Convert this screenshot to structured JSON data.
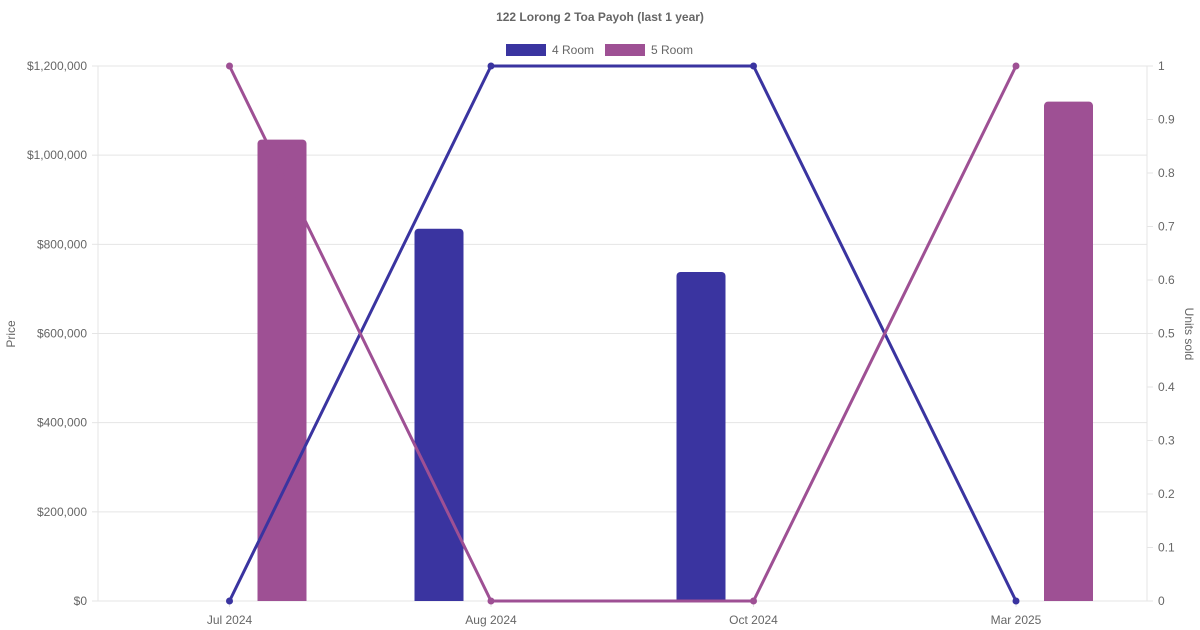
{
  "chart_data": {
    "type": "bar",
    "title": "122 Lorong 2 Toa Payoh (last 1 year)",
    "categories": [
      "Jul 2024",
      "Aug 2024",
      "Oct 2024",
      "Mar 2025"
    ],
    "y_left": {
      "label": "Price",
      "ylim": [
        0,
        1200000
      ],
      "ticks": [
        "$0",
        "$200,000",
        "$400,000",
        "$600,000",
        "$800,000",
        "$1,000,000",
        "$1,200,000"
      ]
    },
    "y_right": {
      "label": "Units sold",
      "ylim": [
        0,
        1
      ],
      "ticks": [
        "0",
        "0.1",
        "0.2",
        "0.3",
        "0.4",
        "0.5",
        "0.6",
        "0.7",
        "0.8",
        "0.9",
        "1"
      ]
    },
    "series": [
      {
        "name": "4 Room",
        "color": "#3a34a0",
        "price": [
          null,
          835000,
          738000,
          null
        ],
        "units": [
          0,
          1,
          1,
          0
        ]
      },
      {
        "name": "5 Room",
        "color": "#9e5094",
        "price": [
          1035000,
          null,
          null,
          1120000
        ],
        "units": [
          1,
          0,
          0,
          1
        ]
      }
    ],
    "grid": true,
    "legend": "top-center"
  }
}
